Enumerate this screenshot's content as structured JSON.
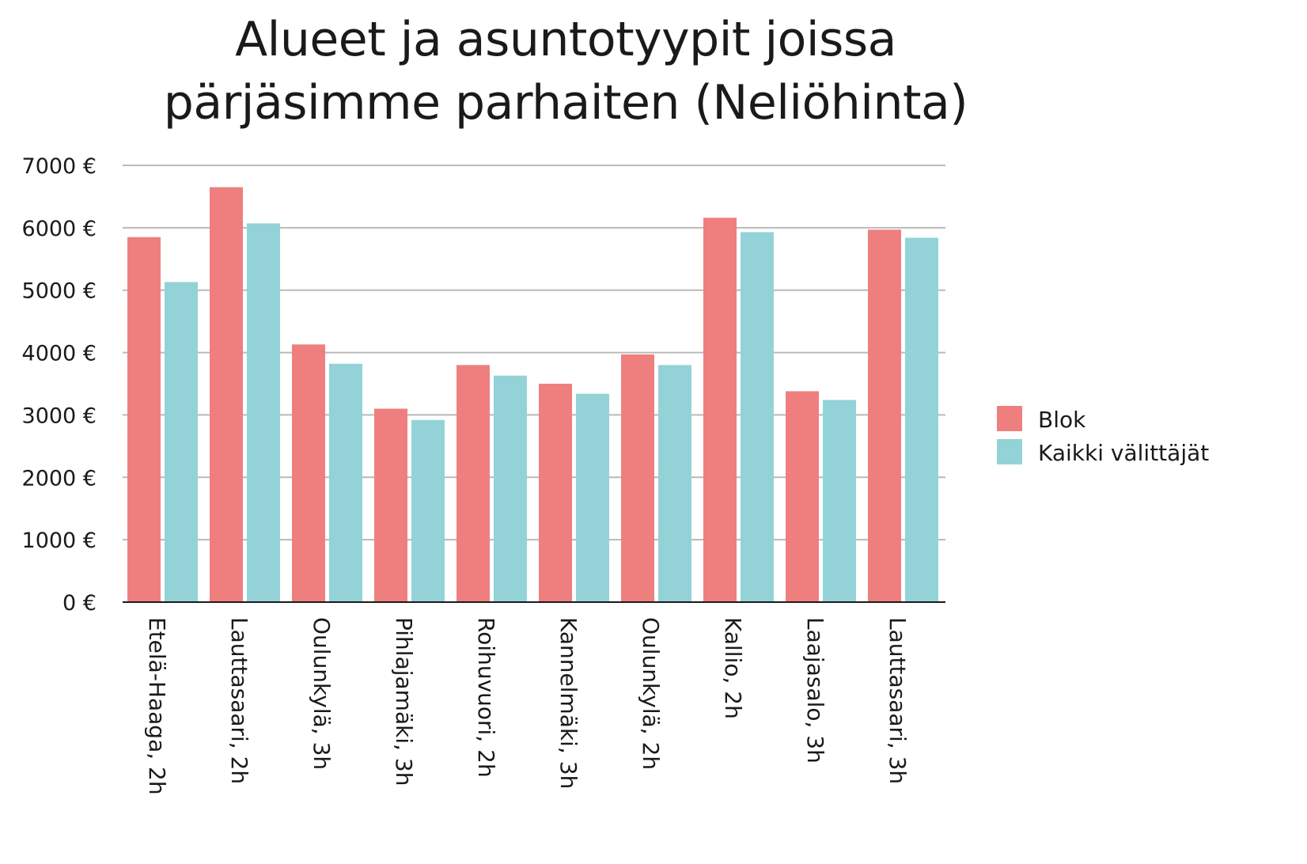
{
  "chart_data": {
    "type": "bar",
    "title_lines": [
      "Alueet ja asuntotyypit joissa",
      "pärjäsimme parhaiten (Neliöhinta)"
    ],
    "title": "Alueet ja asuntotyypit joissa pärjäsimme parhaiten (Neliöhinta)",
    "xlabel": "",
    "ylabel": "",
    "ylim": [
      0,
      7000
    ],
    "yticks": [
      0,
      1000,
      2000,
      3000,
      4000,
      5000,
      6000,
      7000
    ],
    "ytick_labels": [
      "0 €",
      "1000 €",
      "2000 €",
      "3000 €",
      "4000 €",
      "5000 €",
      "6000 €",
      "7000 €"
    ],
    "grid": true,
    "legend_position": "right",
    "categories": [
      "Etelä-Haaga, 2h",
      "Lauttasaari, 2h",
      "Oulunkylä, 3h",
      "Pihlajamäki, 3h",
      "Roihuvuori, 2h",
      "Kannelmäki, 3h",
      "Oulunkylä, 2h",
      "Kallio, 2h",
      "Laajasalo, 3h",
      "Lauttasaari, 3h"
    ],
    "series": [
      {
        "name": "Blok",
        "color": "#ef7f7f",
        "values": [
          5850,
          6650,
          4130,
          3100,
          3800,
          3500,
          3970,
          6160,
          3380,
          5970
        ]
      },
      {
        "name": "Kaikki välittäjät",
        "color": "#93d3d8",
        "values": [
          5130,
          6070,
          3820,
          2920,
          3630,
          3340,
          3800,
          5930,
          3240,
          5840
        ]
      }
    ]
  }
}
